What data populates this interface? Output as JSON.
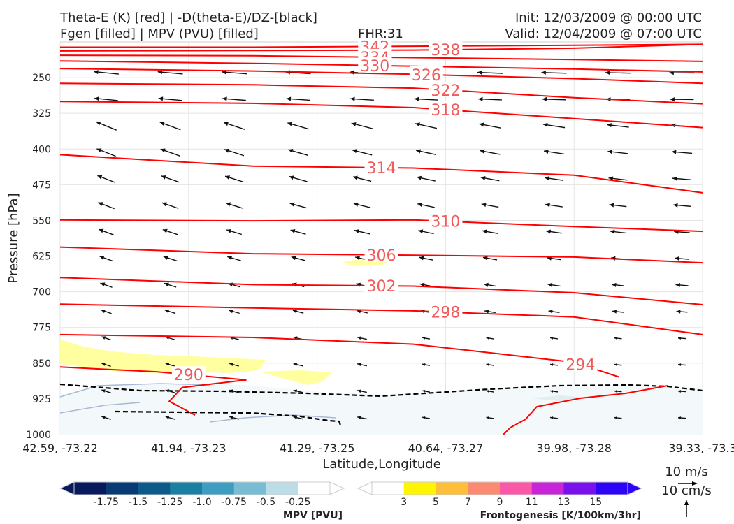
{
  "header": {
    "left_line1": "Theta-E (K) [red] | -D(theta-E)/DZ-[black]",
    "left_line2": "Fgen [filled] | MPV (PVU) [filled]",
    "center_line2": "FHR:31",
    "right_line1": "Init: 12/03/2009 @ 00:00 UTC",
    "right_line2": "Valid: 12/04/2009 @ 07:00 UTC"
  },
  "chart_data": {
    "type": "cross-section",
    "xlabel": "Latitude,Longitude",
    "ylabel": "Pressure [hPa]",
    "ylim": [
      1000,
      175
    ],
    "y_scale": "linear, pressure decreasing upward",
    "yticks": [
      "250",
      "325",
      "400",
      "475",
      "550",
      "625",
      "700",
      "775",
      "850",
      "925",
      "1000"
    ],
    "ytick_values": [
      250,
      325,
      400,
      475,
      550,
      625,
      700,
      775,
      850,
      925,
      1000
    ],
    "xticks": [
      "42.59, -73.22",
      "41.94, -73.23",
      "41.29, -73.25",
      "40.64, -73.27",
      "39.98, -73.28",
      "39.33, -73.3"
    ],
    "grid": true,
    "theta_e_color": "#ff0000",
    "theta_e_label_color": "#f05a5a",
    "theta_e_contours": [
      {
        "label": "342",
        "label_x": 0.49,
        "points": [
          [
            0,
            186
          ],
          [
            0.3,
            186
          ],
          [
            0.55,
            184
          ],
          [
            0.8,
            182
          ],
          [
            1,
            180
          ]
        ]
      },
      {
        "label": "338",
        "label_x": 0.6,
        "points": [
          [
            0,
            194
          ],
          [
            0.3,
            193
          ],
          [
            0.55,
            192
          ],
          [
            0.8,
            188
          ],
          [
            1,
            180
          ]
        ]
      },
      {
        "label": "334",
        "label_x": 0.49,
        "points": [
          [
            0,
            203
          ],
          [
            0.3,
            204
          ],
          [
            0.55,
            208
          ],
          [
            0.8,
            212
          ],
          [
            1,
            216
          ]
        ]
      },
      {
        "label": "330",
        "label_x": 0.49,
        "points": [
          [
            0,
            215
          ],
          [
            0.3,
            220
          ],
          [
            0.55,
            226
          ],
          [
            0.8,
            232
          ],
          [
            1,
            238
          ]
        ]
      },
      {
        "label": "326",
        "label_x": 0.57,
        "points": [
          [
            0,
            231
          ],
          [
            0.3,
            236
          ],
          [
            0.55,
            243
          ],
          [
            0.8,
            252
          ],
          [
            1,
            262
          ]
        ]
      },
      {
        "label": "322",
        "label_x": 0.6,
        "points": [
          [
            0,
            262
          ],
          [
            0.3,
            265
          ],
          [
            0.55,
            272
          ],
          [
            0.8,
            292
          ],
          [
            1,
            305
          ]
        ]
      },
      {
        "label": "318",
        "label_x": 0.6,
        "points": [
          [
            0,
            300
          ],
          [
            0.3,
            304
          ],
          [
            0.55,
            313
          ],
          [
            0.8,
            336
          ],
          [
            1,
            355
          ]
        ]
      },
      {
        "label": "314",
        "label_x": 0.5,
        "points": [
          [
            0,
            412
          ],
          [
            0.3,
            436
          ],
          [
            0.55,
            440
          ],
          [
            0.8,
            455
          ],
          [
            1,
            492
          ]
        ]
      },
      {
        "label": "310",
        "label_x": 0.6,
        "points": [
          [
            0,
            549
          ],
          [
            0.3,
            551
          ],
          [
            0.55,
            549
          ],
          [
            0.8,
            563
          ],
          [
            1,
            573
          ]
        ]
      },
      {
        "label": "306",
        "label_x": 0.5,
        "points": [
          [
            0,
            606
          ],
          [
            0.3,
            620
          ],
          [
            0.55,
            623
          ],
          [
            0.8,
            627
          ],
          [
            1,
            639
          ]
        ]
      },
      {
        "label": "302",
        "label_x": 0.5,
        "points": [
          [
            0,
            670
          ],
          [
            0.3,
            685
          ],
          [
            0.55,
            688
          ],
          [
            0.8,
            702
          ],
          [
            1,
            727
          ]
        ]
      },
      {
        "label": "298",
        "label_x": 0.6,
        "points": [
          [
            0,
            726
          ],
          [
            0.3,
            734
          ],
          [
            0.55,
            740
          ],
          [
            0.8,
            753
          ],
          [
            1,
            790
          ]
        ]
      },
      {
        "label": "294",
        "label_x": 0.81,
        "points": [
          [
            0,
            790
          ],
          [
            0.3,
            796
          ],
          [
            0.55,
            810
          ],
          [
            0.8,
            848
          ],
          [
            0.87,
            879
          ]
        ]
      },
      {
        "label": "290",
        "label_x": 0.2,
        "points": [
          [
            0,
            858
          ],
          [
            0.15,
            868
          ],
          [
            0.29,
            885
          ],
          [
            0.19,
            901
          ],
          [
            0.17,
            930
          ],
          [
            0.21,
            959
          ]
        ]
      }
    ],
    "mpv_colorbar": {
      "label": "MPV [PVU]",
      "ticks": [
        "-1.75",
        "-1.5",
        "-1.25",
        "-1.0",
        "-0.75",
        "-0.5",
        "-0.25"
      ],
      "colors": [
        "#08195e",
        "#083b74",
        "#0b5a8a",
        "#1a7fa3",
        "#3d9ec1",
        "#79bdd5",
        "#bcdce6",
        "#ffffff"
      ]
    },
    "fgen_colorbar": {
      "label": "Frontogenesis [K/100km/3hr]",
      "ticks": [
        "3",
        "5",
        "7",
        "9",
        "11",
        "13",
        "15"
      ],
      "colors": [
        "#ffffff",
        "#fff500",
        "#fdbe3a",
        "#fb8b70",
        "#fb58a8",
        "#c925d8",
        "#7a10ec",
        "#2d05f6"
      ]
    },
    "reference_vectors": {
      "horizontal": "10 m/s",
      "vertical": "10 cm/s"
    }
  }
}
